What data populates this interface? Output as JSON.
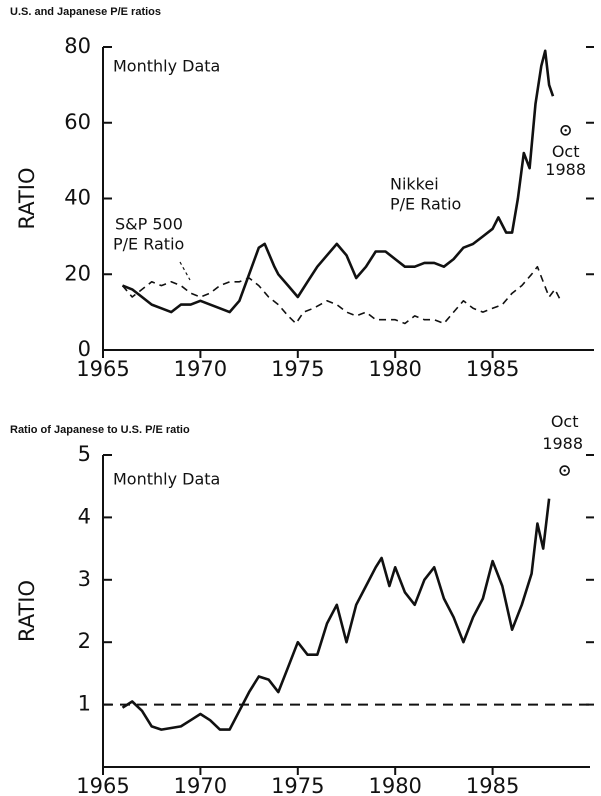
{
  "chart_data": [
    {
      "type": "line",
      "title": "U.S. and Japanese P/E ratios",
      "ylabel": "RATIO",
      "note": "Monthly Data",
      "xlim": [
        1965,
        1990
      ],
      "xticks": [
        1965,
        1970,
        1975,
        1980,
        1985
      ],
      "ylim": [
        0,
        80
      ],
      "yticks": [
        0,
        20,
        40,
        60,
        80
      ],
      "series": [
        {
          "label_lines": [
            "Nikkei",
            "P/E Ratio"
          ],
          "color": "#111",
          "dashed": false,
          "x": [
            1966,
            1966.5,
            1967,
            1967.5,
            1968,
            1968.5,
            1969,
            1969.5,
            1970,
            1970.5,
            1971,
            1971.5,
            1972,
            1972.5,
            1973,
            1973.3,
            1973.8,
            1974,
            1974.5,
            1975,
            1975.5,
            1976,
            1976.5,
            1977,
            1977.5,
            1978,
            1978.5,
            1979,
            1979.5,
            1980,
            1980.5,
            1981,
            1981.5,
            1982,
            1982.5,
            1983,
            1983.5,
            1984,
            1984.5,
            1985,
            1985.3,
            1985.7,
            1986,
            1986.3,
            1986.6,
            1986.9,
            1987.2,
            1987.5,
            1987.7,
            1987.9,
            1988.1
          ],
          "values": [
            17,
            16,
            14,
            12,
            11,
            10,
            12,
            12,
            13,
            12,
            11,
            10,
            13,
            20,
            27,
            28,
            22,
            20,
            17,
            14,
            18,
            22,
            25,
            28,
            25,
            19,
            22,
            26,
            26,
            24,
            22,
            22,
            23,
            23,
            22,
            24,
            27,
            28,
            30,
            32,
            35,
            31,
            31,
            40,
            52,
            48,
            65,
            75,
            79,
            70,
            67
          ]
        },
        {
          "label_lines": [
            "S&P 500",
            "P/E Ratio"
          ],
          "color": "#111",
          "dashed": true,
          "x": [
            1966,
            1966.5,
            1967,
            1967.5,
            1968,
            1968.5,
            1969,
            1969.5,
            1970,
            1970.5,
            1971,
            1971.5,
            1972,
            1972.5,
            1973,
            1973.5,
            1974,
            1974.5,
            1974.9,
            1975.3,
            1975.8,
            1976.5,
            1977,
            1977.5,
            1978,
            1978.5,
            1979,
            1979.5,
            1980,
            1980.5,
            1981,
            1981.5,
            1982,
            1982.5,
            1983,
            1983.5,
            1984,
            1984.5,
            1985,
            1985.5,
            1986,
            1986.5,
            1987,
            1987.3,
            1987.6,
            1987.9,
            1988.2,
            1988.5
          ],
          "values": [
            17,
            14,
            16,
            18,
            17,
            18,
            17,
            15,
            14,
            15,
            17,
            18,
            18,
            19,
            17,
            14,
            12,
            9,
            7,
            10,
            11,
            13,
            12,
            10,
            9,
            10,
            8,
            8,
            8,
            7,
            9,
            8,
            8,
            7,
            10,
            13,
            11,
            10,
            11,
            12,
            15,
            17,
            20,
            22,
            18,
            14,
            16,
            13
          ]
        }
      ],
      "points": [
        {
          "x": 1988.75,
          "y": 58,
          "label_lines": [
            "Oct",
            "1988"
          ]
        }
      ]
    },
    {
      "type": "line",
      "title": "Ratio of Japanese to U.S. P/E ratio",
      "ylabel": "RATIO",
      "note": "Monthly Data",
      "xlim": [
        1965,
        1990
      ],
      "xticks": [
        1965,
        1970,
        1975,
        1980,
        1985
      ],
      "ylim": [
        0,
        5
      ],
      "yticks": [
        1,
        2,
        3,
        4,
        5
      ],
      "hline": 1,
      "series": [
        {
          "color": "#111",
          "dashed": false,
          "x": [
            1966,
            1966.5,
            1967,
            1967.5,
            1968,
            1969,
            1969.5,
            1970,
            1970.5,
            1971,
            1971.5,
            1972,
            1972.5,
            1973,
            1973.5,
            1974,
            1974.5,
            1975,
            1975.5,
            1976,
            1976.5,
            1977,
            1977.5,
            1978,
            1978.5,
            1979,
            1979.3,
            1979.7,
            1980,
            1980.5,
            1981,
            1981.5,
            1982,
            1982.5,
            1983,
            1983.5,
            1984,
            1984.5,
            1985,
            1985.5,
            1986,
            1986.5,
            1987,
            1987.3,
            1987.6,
            1987.9
          ],
          "values": [
            0.95,
            1.05,
            0.9,
            0.65,
            0.6,
            0.65,
            0.75,
            0.85,
            0.75,
            0.6,
            0.6,
            0.9,
            1.2,
            1.45,
            1.4,
            1.2,
            1.6,
            2.0,
            1.8,
            1.8,
            2.3,
            2.6,
            2.0,
            2.6,
            2.9,
            3.2,
            3.35,
            2.9,
            3.2,
            2.8,
            2.6,
            3.0,
            3.2,
            2.7,
            2.4,
            2.0,
            2.4,
            2.7,
            3.3,
            2.9,
            2.2,
            2.6,
            3.1,
            3.9,
            3.5,
            4.3
          ]
        }
      ],
      "points": [
        {
          "x": 1988.7,
          "y": 4.75,
          "label_lines": [
            "Oct",
            "1988"
          ]
        }
      ]
    }
  ]
}
